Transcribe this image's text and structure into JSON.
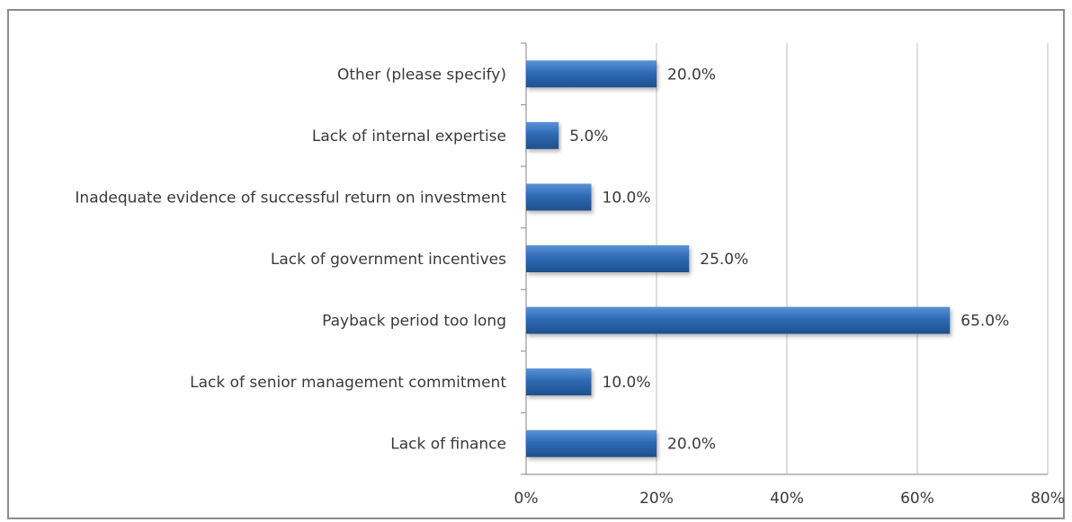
{
  "chart_data": {
    "type": "bar",
    "orientation": "horizontal",
    "categories": [
      "Lack of finance",
      "Lack of senior management commitment",
      "Payback period too long",
      "Lack of government incentives",
      "Inadequate evidence of successful return on investment",
      "Lack of internal expertise",
      "Other (please specify)"
    ],
    "values": [
      20.0,
      10.0,
      65.0,
      25.0,
      10.0,
      5.0,
      20.0
    ],
    "value_labels": [
      "20.0%",
      "10.0%",
      "65.0%",
      "25.0%",
      "10.0%",
      "5.0%",
      "20.0%"
    ],
    "xlim": [
      0,
      80
    ],
    "xticks": [
      0,
      20,
      40,
      60,
      80
    ],
    "xtick_labels": [
      "0%",
      "20%",
      "40%",
      "60%",
      "80%"
    ],
    "title": "",
    "xlabel": "",
    "ylabel": "",
    "grid": true,
    "legend": "none",
    "bar_color": "#2e6bb5",
    "bar_color_dark": "#1f4f8c"
  }
}
